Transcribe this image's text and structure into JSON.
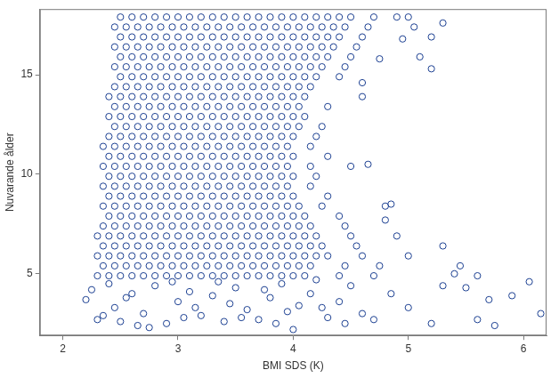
{
  "chart_data": {
    "type": "scatter",
    "x_label": "BMI SDS (K)",
    "y_label": "Nuvarande ålder",
    "color": "#1b3f91",
    "marker": "open_circle",
    "grid": false,
    "xlim": [
      1.8,
      6.2
    ],
    "ylim": [
      1.9,
      18.3
    ],
    "xticks": [
      2,
      3,
      4,
      5,
      6
    ],
    "yticks": [
      5,
      10,
      15
    ],
    "x": [
      2.5,
      2.6,
      2.7,
      2.8,
      2.9,
      3,
      3.1,
      3.2,
      3.3,
      3.4,
      3.5,
      3.6,
      3.7,
      3.8,
      3.9,
      4,
      4.1,
      4.2,
      4.3,
      4.4,
      4.5,
      4.7,
      4.9,
      5,
      2.45,
      2.55,
      2.65,
      2.75,
      2.85,
      2.95,
      3.05,
      3.15,
      3.25,
      3.35,
      3.45,
      3.55,
      3.65,
      3.75,
      3.85,
      3.95,
      4.05,
      4.15,
      4.25,
      4.35,
      4.45,
      4.65,
      5.05,
      2.5,
      2.6,
      2.7,
      2.8,
      2.9,
      3,
      3.1,
      3.2,
      3.3,
      3.4,
      3.5,
      3.6,
      3.7,
      3.8,
      3.9,
      4,
      4.1,
      4.2,
      4.3,
      4.4,
      4.6,
      5.2,
      2.45,
      2.55,
      2.65,
      2.75,
      2.85,
      2.95,
      3.05,
      3.15,
      3.25,
      3.35,
      3.45,
      3.55,
      3.65,
      3.75,
      3.85,
      3.95,
      4.05,
      4.15,
      4.25,
      4.35,
      4.55,
      2.5,
      2.6,
      2.7,
      2.8,
      2.9,
      3,
      3.1,
      3.2,
      3.3,
      3.4,
      3.5,
      3.6,
      3.7,
      3.8,
      3.9,
      4,
      4.1,
      4.2,
      4.3,
      4.5,
      5.1,
      2.45,
      2.55,
      2.65,
      2.75,
      2.85,
      2.95,
      3.05,
      3.15,
      3.25,
      3.35,
      3.45,
      3.55,
      3.65,
      3.75,
      3.85,
      3.95,
      4.05,
      4.15,
      4.25,
      4.45,
      2.5,
      2.6,
      2.7,
      2.8,
      2.9,
      3,
      3.1,
      3.2,
      3.3,
      3.4,
      3.5,
      3.6,
      3.7,
      3.8,
      3.9,
      4,
      4.1,
      4.2,
      4.4,
      2.45,
      2.55,
      2.65,
      2.75,
      2.85,
      2.95,
      3.05,
      3.15,
      3.25,
      3.35,
      3.45,
      3.55,
      3.65,
      3.75,
      3.85,
      3.95,
      4.05,
      4.15,
      2.4,
      2.5,
      2.6,
      2.7,
      2.8,
      2.9,
      3,
      3.1,
      3.2,
      3.3,
      3.4,
      3.5,
      3.6,
      3.7,
      3.8,
      3.9,
      4,
      4.1,
      4.6,
      2.45,
      2.55,
      2.65,
      2.75,
      2.85,
      2.95,
      3.05,
      3.15,
      3.25,
      3.35,
      3.45,
      3.55,
      3.65,
      3.75,
      3.85,
      3.95,
      4.05,
      4.3,
      2.4,
      2.5,
      2.6,
      2.7,
      2.8,
      2.9,
      3,
      3.1,
      3.2,
      3.3,
      3.4,
      3.5,
      3.6,
      3.7,
      3.8,
      3.9,
      4,
      4.1,
      2.45,
      2.55,
      2.65,
      2.75,
      2.85,
      2.95,
      3.05,
      3.15,
      3.25,
      3.35,
      3.45,
      3.55,
      3.65,
      3.75,
      3.85,
      3.95,
      4.05,
      4.25,
      2.4,
      2.5,
      2.6,
      2.7,
      2.8,
      2.9,
      3,
      3.1,
      3.2,
      3.3,
      3.4,
      3.5,
      3.6,
      3.7,
      3.8,
      3.9,
      4,
      4.2,
      2.35,
      2.45,
      2.55,
      2.65,
      2.75,
      2.85,
      2.95,
      3.05,
      3.15,
      3.25,
      3.35,
      3.45,
      3.55,
      3.65,
      3.75,
      3.85,
      3.95,
      4.15,
      2.4,
      2.5,
      2.6,
      2.7,
      2.8,
      2.9,
      3,
      3.1,
      3.2,
      3.3,
      3.4,
      3.5,
      3.6,
      3.7,
      3.8,
      3.9,
      4,
      4.3,
      2.35,
      2.45,
      2.55,
      2.65,
      2.75,
      2.85,
      2.95,
      3.05,
      3.15,
      3.25,
      3.35,
      3.45,
      3.55,
      3.65,
      3.75,
      3.85,
      3.95,
      4.15,
      4.5,
      2.4,
      2.5,
      2.6,
      2.7,
      2.8,
      2.9,
      3,
      3.1,
      3.2,
      3.3,
      3.4,
      3.5,
      3.6,
      3.7,
      3.8,
      3.9,
      4,
      4.2,
      2.35,
      2.45,
      2.55,
      2.65,
      2.75,
      2.85,
      2.95,
      3.05,
      3.15,
      3.25,
      3.35,
      3.45,
      3.55,
      3.65,
      3.75,
      3.85,
      3.95,
      4.15,
      2.4,
      2.5,
      2.6,
      2.7,
      2.8,
      2.9,
      3,
      3.1,
      3.2,
      3.3,
      3.4,
      3.5,
      3.6,
      3.7,
      3.8,
      3.9,
      4,
      4.3,
      2.35,
      2.45,
      2.55,
      2.65,
      2.75,
      2.85,
      2.95,
      3.05,
      3.15,
      3.25,
      3.35,
      3.45,
      3.55,
      3.65,
      3.75,
      3.85,
      3.95,
      4.05,
      4.25,
      4.8,
      2.4,
      2.5,
      2.6,
      2.7,
      2.8,
      2.9,
      3,
      3.1,
      3.2,
      3.3,
      3.4,
      3.5,
      3.6,
      3.7,
      3.8,
      3.9,
      4,
      4.1,
      4.4,
      2.35,
      2.45,
      2.55,
      2.65,
      2.75,
      2.85,
      2.95,
      3.05,
      3.15,
      3.25,
      3.35,
      3.45,
      3.55,
      3.65,
      3.75,
      3.85,
      3.95,
      4.05,
      4.15,
      4.45,
      2.3,
      2.4,
      2.5,
      2.6,
      2.7,
      2.8,
      2.9,
      3,
      3.1,
      3.2,
      3.3,
      3.4,
      3.5,
      3.6,
      3.7,
      3.8,
      3.9,
      4,
      4.1,
      4.2,
      4.5,
      4.9,
      2.35,
      2.45,
      2.55,
      2.65,
      2.75,
      2.85,
      2.95,
      3.05,
      3.15,
      3.25,
      3.35,
      3.45,
      3.55,
      3.65,
      3.75,
      3.85,
      3.95,
      4.05,
      4.15,
      4.25,
      4.55,
      5.3,
      2.3,
      2.4,
      2.5,
      2.6,
      2.7,
      2.8,
      2.9,
      3,
      3.1,
      3.2,
      3.3,
      3.4,
      3.5,
      3.6,
      3.7,
      3.8,
      3.9,
      4,
      4.1,
      4.2,
      4.3,
      4.6,
      5,
      2.35,
      2.45,
      2.55,
      2.65,
      2.75,
      2.85,
      2.95,
      3.05,
      3.15,
      3.25,
      3.35,
      3.45,
      3.55,
      3.65,
      3.75,
      3.85,
      3.95,
      4.05,
      4.15,
      4.45,
      4.75,
      5.45,
      2.3,
      2.4,
      2.5,
      2.6,
      2.7,
      2.8,
      2.9,
      3,
      3.1,
      3.2,
      3.3,
      3.4,
      3.5,
      3.6,
      3.7,
      3.8,
      3.9,
      4,
      4.1,
      4.4,
      4.7,
      5.6,
      2.2,
      2.3,
      2.25,
      2.45,
      2.5,
      2.6,
      2.7,
      2.8,
      2.9,
      3,
      3.1,
      3.2,
      3.3,
      3.4,
      3.5,
      3.6,
      3.7,
      3.8,
      3.9,
      4,
      4.05,
      4.15,
      4.3,
      4.4,
      4.5,
      4.6,
      4.7,
      4.85,
      5,
      5.3,
      5.4,
      5.5,
      5.7,
      5.75,
      5.9,
      6.05,
      6.15,
      2.35,
      2.55,
      2.75,
      2.95,
      3.15,
      3.35,
      3.55,
      3.75,
      3.95,
      4.2,
      4.45,
      5.2,
      5.6,
      4.65,
      4.85,
      4.8,
      5.2,
      5.3,
      4.95,
      4.75,
      4.6,
      2.65,
      3.05,
      3.45,
      3.85,
      4.25,
      2.4
    ],
    "values": [
      17.9,
      17.9,
      17.9,
      17.9,
      17.9,
      17.9,
      17.9,
      17.9,
      17.9,
      17.9,
      17.9,
      17.9,
      17.9,
      17.9,
      17.9,
      17.9,
      17.9,
      17.9,
      17.9,
      17.9,
      17.9,
      17.9,
      17.9,
      17.9,
      17.4,
      17.4,
      17.4,
      17.4,
      17.4,
      17.4,
      17.4,
      17.4,
      17.4,
      17.4,
      17.4,
      17.4,
      17.4,
      17.4,
      17.4,
      17.4,
      17.4,
      17.4,
      17.4,
      17.4,
      17.4,
      17.4,
      17.4,
      16.9,
      16.9,
      16.9,
      16.9,
      16.9,
      16.9,
      16.9,
      16.9,
      16.9,
      16.9,
      16.9,
      16.9,
      16.9,
      16.9,
      16.9,
      16.9,
      16.9,
      16.9,
      16.9,
      16.9,
      16.9,
      16.9,
      16.4,
      16.4,
      16.4,
      16.4,
      16.4,
      16.4,
      16.4,
      16.4,
      16.4,
      16.4,
      16.4,
      16.4,
      16.4,
      16.4,
      16.4,
      16.4,
      16.4,
      16.4,
      16.4,
      16.4,
      16.4,
      15.9,
      15.9,
      15.9,
      15.9,
      15.9,
      15.9,
      15.9,
      15.9,
      15.9,
      15.9,
      15.9,
      15.9,
      15.9,
      15.9,
      15.9,
      15.9,
      15.9,
      15.9,
      15.9,
      15.9,
      15.9,
      15.4,
      15.4,
      15.4,
      15.4,
      15.4,
      15.4,
      15.4,
      15.4,
      15.4,
      15.4,
      15.4,
      15.4,
      15.4,
      15.4,
      15.4,
      15.4,
      15.4,
      15.4,
      15.4,
      15.4,
      14.9,
      14.9,
      14.9,
      14.9,
      14.9,
      14.9,
      14.9,
      14.9,
      14.9,
      14.9,
      14.9,
      14.9,
      14.9,
      14.9,
      14.9,
      14.9,
      14.9,
      14.9,
      14.9,
      14.4,
      14.4,
      14.4,
      14.4,
      14.4,
      14.4,
      14.4,
      14.4,
      14.4,
      14.4,
      14.4,
      14.4,
      14.4,
      14.4,
      14.4,
      14.4,
      14.4,
      14.4,
      13.9,
      13.9,
      13.9,
      13.9,
      13.9,
      13.9,
      13.9,
      13.9,
      13.9,
      13.9,
      13.9,
      13.9,
      13.9,
      13.9,
      13.9,
      13.9,
      13.9,
      13.9,
      13.9,
      13.4,
      13.4,
      13.4,
      13.4,
      13.4,
      13.4,
      13.4,
      13.4,
      13.4,
      13.4,
      13.4,
      13.4,
      13.4,
      13.4,
      13.4,
      13.4,
      13.4,
      13.4,
      12.9,
      12.9,
      12.9,
      12.9,
      12.9,
      12.9,
      12.9,
      12.9,
      12.9,
      12.9,
      12.9,
      12.9,
      12.9,
      12.9,
      12.9,
      12.9,
      12.9,
      12.9,
      12.4,
      12.4,
      12.4,
      12.4,
      12.4,
      12.4,
      12.4,
      12.4,
      12.4,
      12.4,
      12.4,
      12.4,
      12.4,
      12.4,
      12.4,
      12.4,
      12.4,
      12.4,
      11.9,
      11.9,
      11.9,
      11.9,
      11.9,
      11.9,
      11.9,
      11.9,
      11.9,
      11.9,
      11.9,
      11.9,
      11.9,
      11.9,
      11.9,
      11.9,
      11.9,
      11.9,
      11.4,
      11.4,
      11.4,
      11.4,
      11.4,
      11.4,
      11.4,
      11.4,
      11.4,
      11.4,
      11.4,
      11.4,
      11.4,
      11.4,
      11.4,
      11.4,
      11.4,
      11.4,
      10.9,
      10.9,
      10.9,
      10.9,
      10.9,
      10.9,
      10.9,
      10.9,
      10.9,
      10.9,
      10.9,
      10.9,
      10.9,
      10.9,
      10.9,
      10.9,
      10.9,
      10.9,
      10.4,
      10.4,
      10.4,
      10.4,
      10.4,
      10.4,
      10.4,
      10.4,
      10.4,
      10.4,
      10.4,
      10.4,
      10.4,
      10.4,
      10.4,
      10.4,
      10.4,
      10.4,
      10.4,
      9.9,
      9.9,
      9.9,
      9.9,
      9.9,
      9.9,
      9.9,
      9.9,
      9.9,
      9.9,
      9.9,
      9.9,
      9.9,
      9.9,
      9.9,
      9.9,
      9.9,
      9.9,
      9.4,
      9.4,
      9.4,
      9.4,
      9.4,
      9.4,
      9.4,
      9.4,
      9.4,
      9.4,
      9.4,
      9.4,
      9.4,
      9.4,
      9.4,
      9.4,
      9.4,
      9.4,
      8.9,
      8.9,
      8.9,
      8.9,
      8.9,
      8.9,
      8.9,
      8.9,
      8.9,
      8.9,
      8.9,
      8.9,
      8.9,
      8.9,
      8.9,
      8.9,
      8.9,
      8.9,
      8.4,
      8.4,
      8.4,
      8.4,
      8.4,
      8.4,
      8.4,
      8.4,
      8.4,
      8.4,
      8.4,
      8.4,
      8.4,
      8.4,
      8.4,
      8.4,
      8.4,
      8.4,
      8.4,
      8.4,
      7.9,
      7.9,
      7.9,
      7.9,
      7.9,
      7.9,
      7.9,
      7.9,
      7.9,
      7.9,
      7.9,
      7.9,
      7.9,
      7.9,
      7.9,
      7.9,
      7.9,
      7.9,
      7.9,
      7.4,
      7.4,
      7.4,
      7.4,
      7.4,
      7.4,
      7.4,
      7.4,
      7.4,
      7.4,
      7.4,
      7.4,
      7.4,
      7.4,
      7.4,
      7.4,
      7.4,
      7.4,
      7.4,
      7.4,
      6.9,
      6.9,
      6.9,
      6.9,
      6.9,
      6.9,
      6.9,
      6.9,
      6.9,
      6.9,
      6.9,
      6.9,
      6.9,
      6.9,
      6.9,
      6.9,
      6.9,
      6.9,
      6.9,
      6.9,
      6.9,
      6.9,
      6.4,
      6.4,
      6.4,
      6.4,
      6.4,
      6.4,
      6.4,
      6.4,
      6.4,
      6.4,
      6.4,
      6.4,
      6.4,
      6.4,
      6.4,
      6.4,
      6.4,
      6.4,
      6.4,
      6.4,
      6.4,
      6.4,
      5.9,
      5.9,
      5.9,
      5.9,
      5.9,
      5.9,
      5.9,
      5.9,
      5.9,
      5.9,
      5.9,
      5.9,
      5.9,
      5.9,
      5.9,
      5.9,
      5.9,
      5.9,
      5.9,
      5.9,
      5.9,
      5.9,
      5.9,
      5.4,
      5.4,
      5.4,
      5.4,
      5.4,
      5.4,
      5.4,
      5.4,
      5.4,
      5.4,
      5.4,
      5.4,
      5.4,
      5.4,
      5.4,
      5.4,
      5.4,
      5.4,
      5.4,
      5.4,
      5.4,
      5.4,
      4.9,
      4.9,
      4.9,
      4.9,
      4.9,
      4.9,
      4.9,
      4.9,
      4.9,
      4.9,
      4.9,
      4.9,
      4.9,
      4.9,
      4.9,
      4.9,
      4.9,
      4.9,
      4.9,
      4.9,
      4.9,
      4.9,
      3.7,
      2.7,
      4.2,
      3.3,
      2.6,
      4,
      3,
      4.4,
      2.5,
      3.6,
      4.1,
      2.9,
      3.9,
      2.6,
      4.3,
      3.2,
      2.7,
      3.8,
      4.5,
      2.2,
      3.4,
      4,
      2.8,
      3.6,
      4.4,
      3,
      2.7,
      4,
      3.3,
      4.4,
      5,
      4.3,
      3.7,
      2.4,
      3.9,
      4.6,
      3,
      2.9,
      3.8,
      2.3,
      4.6,
      3.3,
      4.6,
      2.8,
      4.2,
      3.1,
      4.7,
      2.5,
      2.5,
      2.7,
      10.5,
      8.5,
      7.7,
      15.3,
      17.6,
      16.8,
      15.8,
      14.6,
      2.4,
      2.8,
      3.5,
      2.5,
      3.3,
      4.5
    ]
  }
}
